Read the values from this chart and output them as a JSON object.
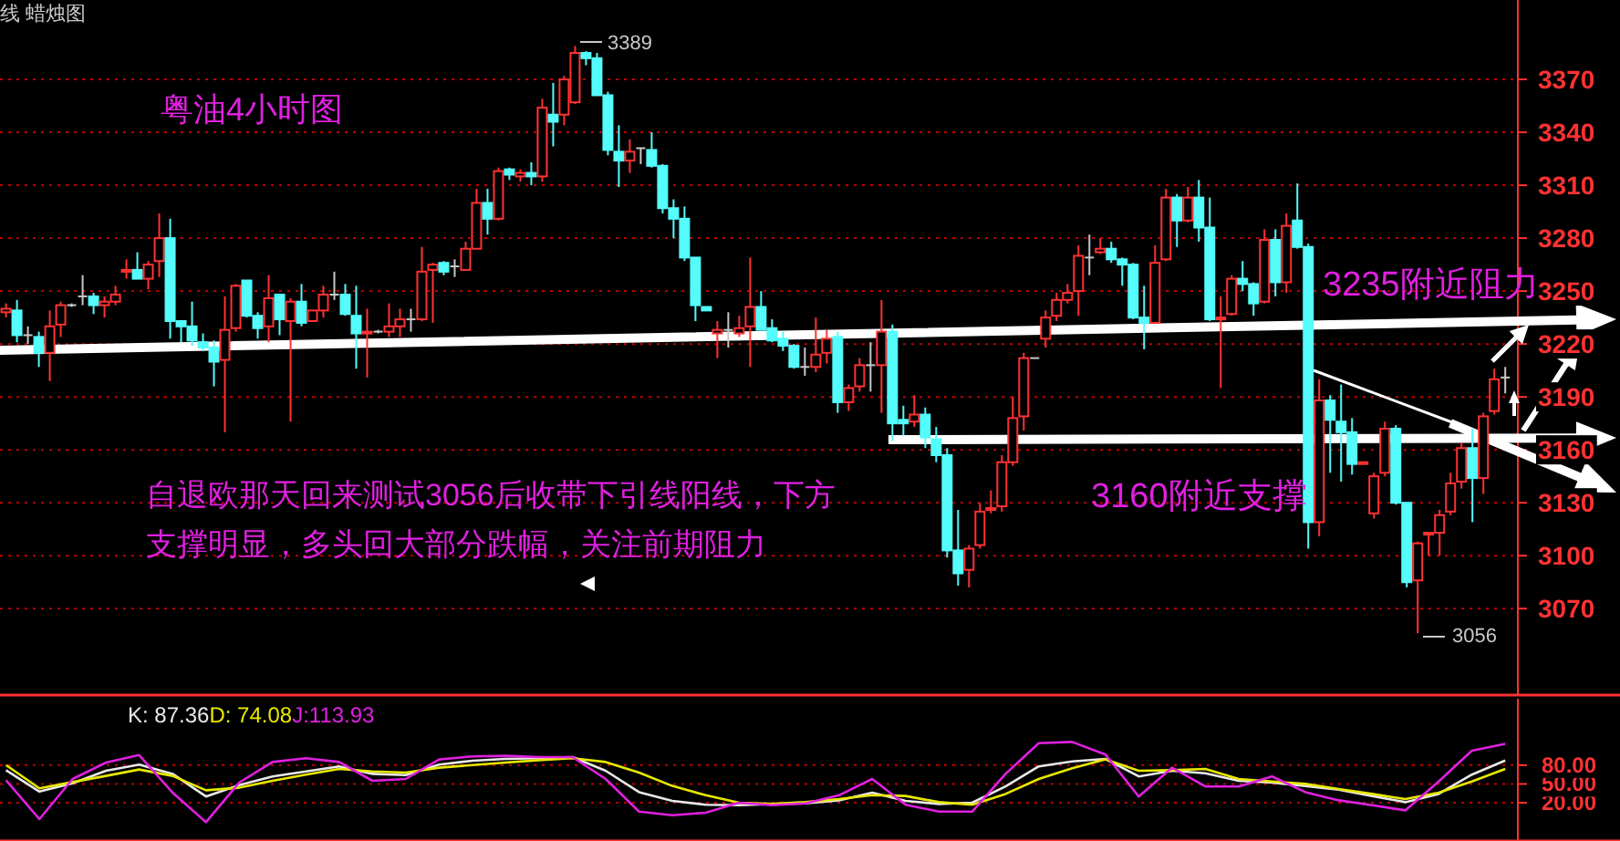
{
  "chart_data": [
    {
      "type": "candlestick",
      "title": "粤油4小时图",
      "categories": [
        null,
        null,
        null,
        null,
        null,
        null,
        null,
        null,
        null,
        null,
        null,
        null,
        null,
        null,
        null,
        null,
        null,
        null,
        null,
        null,
        null,
        null,
        null,
        null,
        null,
        null,
        null,
        null,
        null,
        null,
        null,
        null,
        null,
        null,
        null,
        null,
        null,
        null,
        null,
        null,
        null,
        null,
        null,
        null,
        null,
        null,
        null,
        null,
        null,
        null,
        null,
        null,
        null,
        null,
        null,
        null,
        null,
        null,
        null,
        null,
        null,
        null,
        null,
        null,
        null,
        null,
        null,
        null,
        null,
        null,
        null,
        null,
        null,
        null,
        null,
        null,
        null,
        null,
        null,
        null,
        null,
        null,
        null,
        null,
        null,
        null,
        null,
        null,
        null,
        null,
        null,
        null,
        null,
        null,
        null,
        null,
        null,
        null,
        null,
        null,
        null,
        null,
        null,
        null,
        null,
        null,
        null,
        null,
        null,
        null,
        null,
        null,
        null,
        null,
        null,
        null,
        null,
        null,
        null,
        null,
        null,
        null,
        null,
        null,
        null,
        null,
        null,
        null,
        null,
        null,
        null,
        null,
        null,
        null,
        null,
        null,
        null,
        null
      ],
      "ohlc": [
        [
          3238,
          3243,
          3235,
          3240
        ],
        [
          3239,
          3245,
          3221,
          3225
        ],
        [
          3225,
          3230,
          3220,
          3225
        ],
        [
          3224,
          3227,
          3207,
          3215
        ],
        [
          3215,
          3239,
          3199,
          3230
        ],
        [
          3231,
          3244,
          3224,
          3242
        ],
        [
          3242,
          3243,
          3241,
          3242
        ],
        [
          3247,
          3259,
          3242,
          3247
        ],
        [
          3247,
          3249,
          3237,
          3242
        ],
        [
          3242,
          3247,
          3235,
          3244
        ],
        [
          3244,
          3253,
          3242,
          3248
        ],
        [
          3261,
          3268,
          3257,
          3262
        ],
        [
          3262,
          3272,
          3257,
          3257
        ],
        [
          3257,
          3267,
          3251,
          3265
        ],
        [
          3267,
          3294,
          3258,
          3280
        ],
        [
          3280,
          3291,
          3223,
          3233
        ],
        [
          3233,
          3233,
          3221,
          3230
        ],
        [
          3230,
          3244,
          3219,
          3222
        ],
        [
          3221,
          3226,
          3216,
          3218
        ],
        [
          3218,
          3222,
          3196,
          3210
        ],
        [
          3211,
          3247,
          3170,
          3228
        ],
        [
          3229,
          3254,
          3227,
          3253
        ],
        [
          3256,
          3256,
          3235,
          3236
        ],
        [
          3236,
          3238,
          3223,
          3229
        ],
        [
          3230,
          3259,
          3221,
          3246
        ],
        [
          3248,
          3248,
          3225,
          3234
        ],
        [
          3233,
          3246,
          3176,
          3244
        ],
        [
          3244,
          3254,
          3230,
          3232
        ],
        [
          3233,
          3239,
          3233,
          3239
        ],
        [
          3239,
          3253,
          3235,
          3248
        ],
        [
          3248,
          3261,
          3245,
          3248
        ],
        [
          3248,
          3254,
          3236,
          3237
        ],
        [
          3236,
          3253,
          3206,
          3226
        ],
        [
          3226,
          3240,
          3201,
          3227
        ],
        [
          3227,
          3228,
          3226,
          3227
        ],
        [
          3227,
          3243,
          3224,
          3230
        ],
        [
          3230,
          3240,
          3224,
          3234
        ],
        [
          3234,
          3240,
          3227,
          3234
        ],
        [
          3234,
          3275,
          3233,
          3261
        ],
        [
          3262,
          3266,
          3232,
          3265
        ],
        [
          3266,
          3267,
          3259,
          3261
        ],
        [
          3264,
          3268,
          3258,
          3264
        ],
        [
          3262,
          3278,
          3262,
          3274
        ],
        [
          3274,
          3308,
          3274,
          3300
        ],
        [
          3300,
          3308,
          3282,
          3291
        ],
        [
          3291,
          3320,
          3290,
          3318
        ],
        [
          3319,
          3320,
          3313,
          3316
        ],
        [
          3315,
          3319,
          3312,
          3317
        ],
        [
          3317,
          3323,
          3310,
          3315
        ],
        [
          3315,
          3359,
          3312,
          3354
        ],
        [
          3350,
          3368,
          3332,
          3346
        ],
        [
          3350,
          3372,
          3344,
          3370
        ],
        [
          3357,
          3389,
          3356,
          3385
        ],
        [
          3385,
          3386,
          3378,
          3382
        ],
        [
          3382,
          3385,
          3361,
          3361
        ],
        [
          3361,
          3363,
          3327,
          3330
        ],
        [
          3329,
          3344,
          3309,
          3324
        ],
        [
          3324,
          3336,
          3317,
          3329
        ],
        [
          3331,
          3331,
          3322,
          3331
        ],
        [
          3330,
          3340,
          3320,
          3321
        ],
        [
          3321,
          3322,
          3294,
          3297
        ],
        [
          3297,
          3302,
          3280,
          3291
        ],
        [
          3291,
          3298,
          3267,
          3269
        ],
        [
          3269,
          3269,
          3233,
          3242
        ],
        [
          3241,
          3241,
          3239,
          3239
        ],
        [
          3226,
          3233,
          3212,
          3228
        ],
        [
          3228,
          3238,
          3218,
          3228
        ],
        [
          3226,
          3236,
          3224,
          3229
        ],
        [
          3230,
          3269,
          3207,
          3241
        ],
        [
          3241,
          3250,
          3228,
          3228
        ],
        [
          3229,
          3234,
          3221,
          3222
        ],
        [
          3223,
          3227,
          3216,
          3219
        ],
        [
          3219,
          3220,
          3206,
          3207
        ],
        [
          3207,
          3218,
          3202,
          3207
        ],
        [
          3207,
          3235,
          3204,
          3214
        ],
        [
          3215,
          3228,
          3209,
          3223
        ],
        [
          3224,
          3227,
          3181,
          3187
        ],
        [
          3187,
          3197,
          3182,
          3195
        ],
        [
          3196,
          3212,
          3193,
          3208
        ],
        [
          3208,
          3221,
          3193,
          3208
        ],
        [
          3208,
          3245,
          3181,
          3227
        ],
        [
          3227,
          3231,
          3165,
          3175
        ],
        [
          3177,
          3185,
          3168,
          3175
        ],
        [
          3176,
          3191,
          3173,
          3180
        ],
        [
          3180,
          3184,
          3161,
          3167
        ],
        [
          3166,
          3173,
          3153,
          3157
        ],
        [
          3157,
          3161,
          3099,
          3103
        ],
        [
          3103,
          3126,
          3083,
          3090
        ],
        [
          3092,
          3106,
          3082,
          3104
        ],
        [
          3106,
          3130,
          3104,
          3125
        ],
        [
          3126,
          3137,
          3124,
          3127
        ],
        [
          3128,
          3157,
          3125,
          3153
        ],
        [
          3153,
          3190,
          3151,
          3178
        ],
        [
          3179,
          3215,
          3171,
          3212
        ],
        [
          3212,
          3212,
          3212,
          3212
        ],
        [
          3223,
          3239,
          3218,
          3235
        ],
        [
          3236,
          3249,
          3233,
          3245
        ],
        [
          3245,
          3254,
          3243,
          3249
        ],
        [
          3250,
          3276,
          3236,
          3270
        ],
        [
          3269,
          3282,
          3259,
          3269
        ],
        [
          3272,
          3280,
          3271,
          3274
        ],
        [
          3274,
          3278,
          3266,
          3268
        ],
        [
          3268,
          3269,
          3253,
          3265
        ],
        [
          3265,
          3266,
          3234,
          3235
        ],
        [
          3235,
          3253,
          3217,
          3232
        ],
        [
          3232,
          3276,
          3232,
          3266
        ],
        [
          3268,
          3308,
          3267,
          3303
        ],
        [
          3303,
          3305,
          3275,
          3290
        ],
        [
          3290,
          3309,
          3289,
          3303
        ],
        [
          3303,
          3313,
          3278,
          3286
        ],
        [
          3286,
          3303,
          3233,
          3234
        ],
        [
          3234,
          3247,
          3195,
          3235
        ],
        [
          3237,
          3259,
          3236,
          3257
        ],
        [
          3257,
          3267,
          3250,
          3254
        ],
        [
          3254,
          3255,
          3236,
          3243
        ],
        [
          3244,
          3285,
          3243,
          3279
        ],
        [
          3279,
          3285,
          3247,
          3255
        ],
        [
          3255,
          3294,
          3249,
          3287
        ],
        [
          3290,
          3311,
          3274,
          3275
        ],
        [
          3275,
          3277,
          3104,
          3119
        ],
        [
          3119,
          3200,
          3111,
          3188
        ],
        [
          3188,
          3191,
          3147,
          3177
        ],
        [
          3176,
          3197,
          3142,
          3170
        ],
        [
          3170,
          3178,
          3146,
          3152
        ],
        [
          3152,
          3153,
          3152,
          3153
        ],
        [
          3124,
          3147,
          3121,
          3145
        ],
        [
          3147,
          3176,
          3145,
          3172
        ],
        [
          3172,
          3174,
          3129,
          3130
        ],
        [
          3130,
          3130,
          3082,
          3085
        ],
        [
          3086,
          3108,
          3056,
          3107
        ],
        [
          3112,
          3113,
          3100,
          3113
        ],
        [
          3113,
          3126,
          3100,
          3123
        ],
        [
          3125,
          3147,
          3123,
          3141
        ],
        [
          3142,
          3164,
          3138,
          3161
        ],
        [
          3161,
          3172,
          3119,
          3144
        ],
        [
          3144,
          3181,
          3135,
          3179
        ],
        [
          3182,
          3206,
          3180,
          3200
        ],
        [
          3201,
          3207,
          3192,
          3201
        ]
      ],
      "ylim": [
        3021,
        3415
      ],
      "yticks": [
        3070,
        3100,
        3130,
        3160,
        3190,
        3220,
        3250,
        3280,
        3310,
        3340,
        3370
      ],
      "grid": "y",
      "tick_labels": "y",
      "annotations": [
        "线 蜡烛图",
        "自退欧那天回来测试3056后收带下引线阳线，下方",
        "支撑明显，多头回大部分跌幅，关注前期阻力",
        "3235附近阻力",
        "3160附近支撑",
        "3389",
        "3056"
      ]
    },
    {
      "type": "line",
      "categories": [
        null,
        null,
        null,
        null,
        null,
        null,
        null,
        null,
        null,
        null,
        null,
        null,
        null,
        null,
        null,
        null,
        null,
        null,
        null,
        null,
        null,
        null,
        null,
        null,
        null,
        null,
        null,
        null,
        null,
        null,
        null,
        null,
        null,
        null,
        null,
        null,
        null,
        null,
        null,
        null,
        null,
        null,
        null,
        null,
        null,
        null
      ],
      "ylim": [
        -41,
        186
      ],
      "yticks": [
        {
          "value": 20,
          "label": "20.00"
        },
        {
          "value": 50,
          "label": "50.00"
        },
        {
          "value": 80,
          "label": "80.00"
        }
      ],
      "grid": "y",
      "tick_labels": "y",
      "series": [
        {
          "name": "K: 87.36",
          "color": "#e8e8e8",
          "values": [
            72,
            38,
            51,
            71,
            81,
            66,
            30,
            48,
            62,
            70,
            78,
            66,
            64,
            81,
            87,
            90,
            91,
            93,
            71,
            37,
            23,
            17,
            16,
            18,
            19,
            24,
            36,
            23,
            18,
            20,
            46,
            78,
            86,
            90,
            62,
            71,
            67,
            55,
            52,
            47,
            41,
            31,
            21,
            34,
            65,
            87.36
          ]
        },
        {
          "name": "D: 74.08",
          "color": "#e8e800",
          "values": [
            80,
            43,
            53,
            63,
            73,
            63,
            40,
            44,
            55,
            65,
            74,
            70,
            68,
            76,
            80,
            84,
            88,
            91,
            85,
            68,
            47,
            32,
            20,
            18,
            21,
            26,
            32,
            31,
            21,
            17,
            34,
            58,
            75,
            89,
            71,
            72,
            74,
            58,
            54,
            50,
            42,
            34,
            26,
            36,
            54,
            74.08
          ]
        },
        {
          "name": "J:113.93",
          "color": "#e020e0",
          "values": [
            56,
            -6,
            58,
            84,
            96,
            36,
            -11,
            52,
            85,
            91,
            85,
            55,
            58,
            89,
            94,
            95,
            93,
            93,
            58,
            6,
            0,
            4,
            20,
            16,
            19,
            32,
            58,
            17,
            6,
            6,
            66,
            115,
            117,
            97,
            30,
            76,
            46,
            46,
            62,
            37,
            24,
            16,
            8,
            54,
            103,
            113.93
          ]
        }
      ]
    }
  ]
}
